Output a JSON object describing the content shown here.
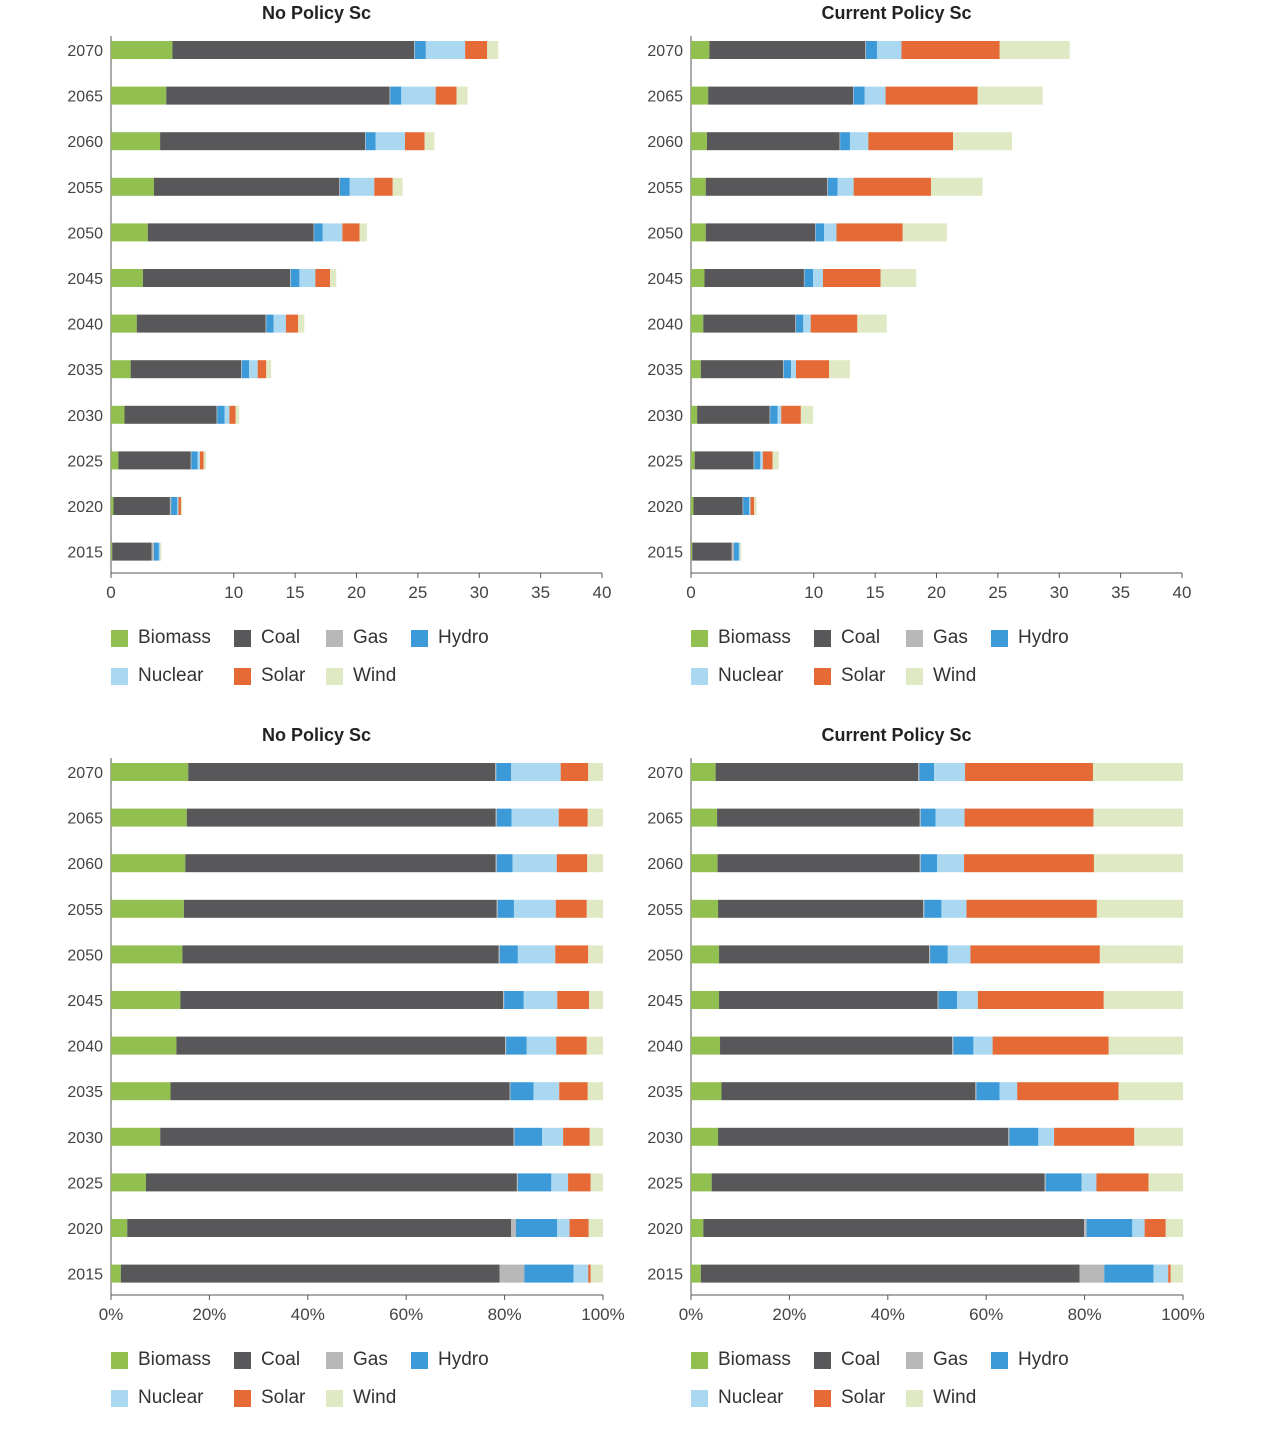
{
  "colors": {
    "Biomass": "#92c050",
    "Coal": "#58585a",
    "Gas": "#b8b8b8",
    "Hydro": "#3d9ad8",
    "Nuclear": "#a9d8f0",
    "Solar": "#e56a36",
    "Wind": "#dfe9c4"
  },
  "legend_labels": [
    "Biomass",
    "Coal",
    "Gas",
    "Hydro",
    "Nuclear",
    "Solar",
    "Wind"
  ],
  "chart_data": [
    {
      "type": "bar",
      "orientation": "horizontal",
      "stacked": true,
      "title": "No Policy Sc",
      "categories": [
        "2070",
        "2065",
        "2060",
        "2055",
        "2050",
        "2045",
        "2040",
        "2035",
        "2030",
        "2025",
        "2020",
        "2015"
      ],
      "xlim": [
        0,
        40
      ],
      "xticks": [
        "0",
        "10",
        "15",
        "20",
        "25",
        "30",
        "35",
        "40"
      ],
      "series": [
        {
          "name": "Biomass",
          "values": [
            5.0,
            4.5,
            4.0,
            3.5,
            3.0,
            2.6,
            2.1,
            1.6,
            1.1,
            0.6,
            0.2,
            0.1
          ]
        },
        {
          "name": "Coal",
          "values": [
            19.7,
            18.2,
            16.7,
            15.1,
            13.5,
            12.0,
            10.5,
            9.0,
            7.5,
            5.9,
            4.6,
            3.2
          ]
        },
        {
          "name": "Gas",
          "values": [
            0.05,
            0.05,
            0.05,
            0.05,
            0.05,
            0.05,
            0.05,
            0.05,
            0.05,
            0.05,
            0.1,
            0.2
          ]
        },
        {
          "name": "Hydro",
          "values": [
            0.9,
            0.9,
            0.8,
            0.8,
            0.7,
            0.7,
            0.6,
            0.6,
            0.6,
            0.5,
            0.5,
            0.4
          ]
        },
        {
          "name": "Nuclear",
          "values": [
            3.2,
            2.8,
            2.4,
            2.0,
            1.6,
            1.3,
            1.0,
            0.7,
            0.4,
            0.2,
            0.1,
            0.1
          ]
        },
        {
          "name": "Solar",
          "values": [
            1.8,
            1.7,
            1.6,
            1.5,
            1.4,
            1.2,
            1.0,
            0.7,
            0.5,
            0.3,
            0.2,
            0.0
          ]
        },
        {
          "name": "Wind",
          "values": [
            0.9,
            0.9,
            0.8,
            0.8,
            0.6,
            0.5,
            0.5,
            0.4,
            0.3,
            0.2,
            0.1,
            0.1
          ]
        }
      ]
    },
    {
      "type": "bar",
      "orientation": "horizontal",
      "stacked": true,
      "title": "Current Policy Sc",
      "categories": [
        "2070",
        "2065",
        "2060",
        "2055",
        "2050",
        "2045",
        "2040",
        "2035",
        "2030",
        "2025",
        "2020",
        "2015"
      ],
      "xlim": [
        0,
        40
      ],
      "xticks": [
        "0",
        "10",
        "15",
        "20",
        "25",
        "30",
        "35",
        "40"
      ],
      "series": [
        {
          "name": "Biomass",
          "values": [
            1.5,
            1.4,
            1.3,
            1.2,
            1.2,
            1.1,
            1.0,
            0.8,
            0.5,
            0.3,
            0.2,
            0.1
          ]
        },
        {
          "name": "Coal",
          "values": [
            12.7,
            11.8,
            10.8,
            9.9,
            8.9,
            8.1,
            7.5,
            6.7,
            5.9,
            4.8,
            4.0,
            3.2
          ]
        },
        {
          "name": "Gas",
          "values": [
            0.05,
            0.05,
            0.05,
            0.05,
            0.05,
            0.05,
            0.05,
            0.05,
            0.05,
            0.05,
            0.05,
            0.2
          ]
        },
        {
          "name": "Hydro",
          "values": [
            0.9,
            0.9,
            0.8,
            0.8,
            0.7,
            0.7,
            0.6,
            0.6,
            0.6,
            0.5,
            0.5,
            0.4
          ]
        },
        {
          "name": "Nuclear",
          "values": [
            2.0,
            1.7,
            1.5,
            1.3,
            1.0,
            0.8,
            0.6,
            0.4,
            0.3,
            0.2,
            0.1,
            0.1
          ]
        },
        {
          "name": "Solar",
          "values": [
            8.0,
            7.5,
            6.9,
            6.3,
            5.4,
            4.7,
            3.8,
            2.7,
            1.6,
            0.8,
            0.3,
            0.0
          ]
        },
        {
          "name": "Wind",
          "values": [
            5.7,
            5.3,
            4.8,
            4.2,
            3.6,
            2.9,
            2.4,
            1.7,
            1.0,
            0.5,
            0.2,
            0.1
          ]
        }
      ]
    },
    {
      "type": "bar",
      "orientation": "horizontal",
      "stacked": true,
      "percent": true,
      "title": "No Policy Sc",
      "categories": [
        "2070",
        "2065",
        "2060",
        "2055",
        "2050",
        "2045",
        "2040",
        "2035",
        "2030",
        "2025",
        "2020",
        "2015"
      ],
      "xlim": [
        0,
        100
      ],
      "xticks": [
        "0%",
        "20%",
        "40%",
        "60%",
        "80%",
        "100%"
      ],
      "series": [
        {
          "name": "Biomass",
          "values": [
            15.7,
            15.4,
            15.1,
            14.8,
            14.5,
            14.1,
            13.3,
            12.1,
            10.0,
            7.1,
            3.3,
            2.0
          ]
        },
        {
          "name": "Coal",
          "values": [
            62.4,
            62.8,
            63.1,
            63.6,
            64.3,
            65.6,
            66.8,
            68.9,
            71.8,
            75.4,
            78.0,
            77.0
          ]
        },
        {
          "name": "Gas",
          "values": [
            0.2,
            0.2,
            0.2,
            0.2,
            0.2,
            0.2,
            0.2,
            0.2,
            0.2,
            0.2,
            1.0,
            5.0
          ]
        },
        {
          "name": "Hydro",
          "values": [
            3.0,
            3.0,
            3.2,
            3.3,
            3.7,
            4.0,
            4.2,
            4.7,
            5.6,
            6.8,
            8.4,
            10.0
          ]
        },
        {
          "name": "Nuclear",
          "values": [
            10.1,
            9.6,
            9.0,
            8.5,
            7.6,
            6.8,
            6.0,
            5.2,
            4.3,
            3.4,
            2.5,
            3.0
          ]
        },
        {
          "name": "Solar",
          "values": [
            5.6,
            5.9,
            6.2,
            6.3,
            6.7,
            6.5,
            6.2,
            5.8,
            5.4,
            4.6,
            3.9,
            0.5
          ]
        },
        {
          "name": "Wind",
          "values": [
            3.0,
            3.1,
            3.2,
            3.3,
            3.0,
            2.8,
            3.3,
            3.1,
            2.7,
            2.5,
            2.9,
            2.5
          ]
        }
      ]
    },
    {
      "type": "bar",
      "orientation": "horizontal",
      "stacked": true,
      "percent": true,
      "title": "Current Policy Sc",
      "categories": [
        "2070",
        "2065",
        "2060",
        "2055",
        "2050",
        "2045",
        "2040",
        "2035",
        "2030",
        "2025",
        "2020",
        "2015"
      ],
      "xlim": [
        0,
        100
      ],
      "xticks": [
        "0%",
        "20%",
        "40%",
        "60%",
        "80%",
        "100%"
      ],
      "series": [
        {
          "name": "Biomass",
          "values": [
            5.0,
            5.3,
            5.4,
            5.5,
            5.7,
            5.7,
            5.9,
            6.2,
            5.5,
            4.2,
            2.5,
            2.0
          ]
        },
        {
          "name": "Coal",
          "values": [
            41.2,
            41.2,
            41.1,
            41.7,
            42.7,
            44.4,
            47.2,
            51.6,
            59.0,
            67.7,
            77.4,
            77.0
          ]
        },
        {
          "name": "Gas",
          "values": [
            0.2,
            0.2,
            0.2,
            0.2,
            0.2,
            0.2,
            0.2,
            0.2,
            0.2,
            0.2,
            0.5,
            5.0
          ]
        },
        {
          "name": "Hydro",
          "values": [
            3.0,
            3.0,
            3.3,
            3.5,
            3.6,
            3.8,
            4.1,
            4.7,
            5.9,
            7.3,
            9.3,
            10.0
          ]
        },
        {
          "name": "Nuclear",
          "values": [
            6.3,
            5.9,
            5.5,
            5.1,
            4.6,
            4.2,
            3.9,
            3.6,
            3.2,
            3.0,
            2.5,
            3.0
          ]
        },
        {
          "name": "Solar",
          "values": [
            26.0,
            26.2,
            26.4,
            26.5,
            26.3,
            25.6,
            23.6,
            20.6,
            16.3,
            10.6,
            4.3,
            0.5
          ]
        },
        {
          "name": "Wind",
          "values": [
            18.3,
            18.2,
            18.1,
            17.5,
            16.9,
            16.1,
            15.1,
            13.1,
            9.9,
            7.0,
            3.5,
            2.5
          ]
        }
      ]
    }
  ]
}
